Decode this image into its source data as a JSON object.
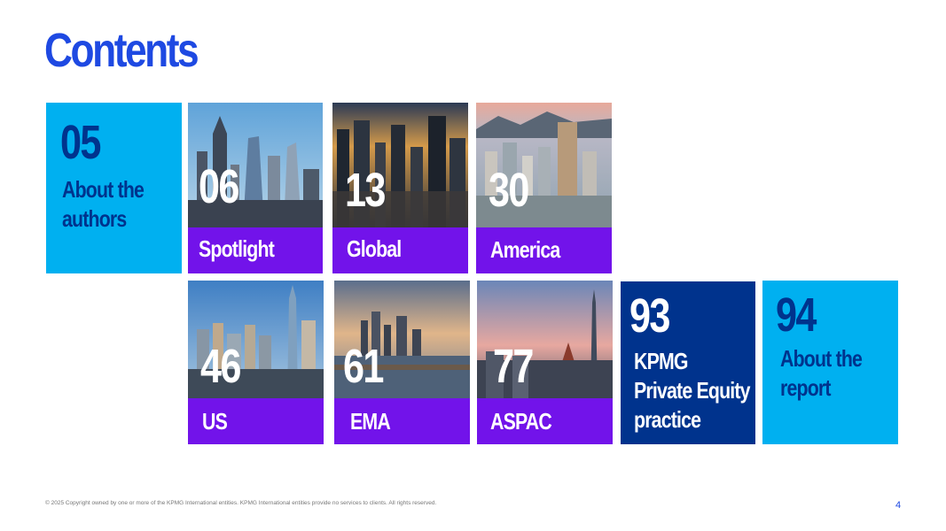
{
  "title": "Contents",
  "tiles": [
    {
      "number": "05",
      "label": [
        "About the",
        "authors"
      ],
      "style": "light-solid"
    },
    {
      "number": "06",
      "label": [
        "Spotlight"
      ],
      "image": "london-skyline-photo"
    },
    {
      "number": "13",
      "label": [
        "Global"
      ],
      "image": "city-sunset-aerial-photo"
    },
    {
      "number": "30",
      "label": [
        "America"
      ],
      "image": "city-mountains-aerial-photo"
    },
    {
      "number": "46",
      "label": [
        "US"
      ],
      "image": "new-york-skyline-photo"
    },
    {
      "number": "61",
      "label": [
        "EMA"
      ],
      "image": "frankfurt-river-photo"
    },
    {
      "number": "77",
      "label": [
        "ASPAC"
      ],
      "image": "tokyo-skytree-photo"
    },
    {
      "number": "93",
      "label": [
        "KPMG",
        "Private Equity",
        "practice"
      ],
      "style": "dark-solid"
    },
    {
      "number": "94",
      "label": [
        "About the",
        "report"
      ],
      "style": "light-solid"
    }
  ],
  "colors": {
    "title_blue": "#1e49e2",
    "light_blue": "#00b0f0",
    "dark_blue": "#00338d",
    "purple": "#7213ea"
  },
  "footer": {
    "copyright": "© 2025 Copyright owned by one or more of the KPMG International entities. KPMG International entities provide no services to clients. All rights reserved.",
    "page_number": "4"
  }
}
